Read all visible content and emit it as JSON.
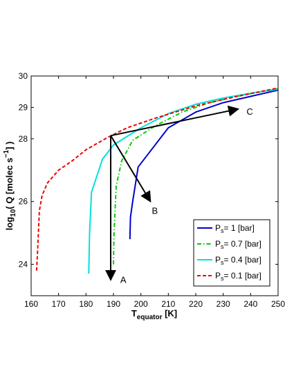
{
  "chart_data": {
    "type": "line",
    "xlabel_main": "T",
    "xlabel_sub": "equator",
    "xlabel_unit": " [K]",
    "ylabel_main": "log",
    "ylabel_sub": "10",
    "ylabel_mid": "( Q [molec s",
    "ylabel_sup": "−1",
    "ylabel_end": "] )",
    "xlim": [
      160,
      250
    ],
    "ylim": [
      23,
      30
    ],
    "xticks": [
      160,
      170,
      180,
      190,
      200,
      210,
      220,
      230,
      240,
      250
    ],
    "yticks": [
      24,
      26,
      28,
      29,
      30
    ],
    "grid": false,
    "legend_position": "bottom-right",
    "series": [
      {
        "name_main": "P",
        "name_sub": "s",
        "name_rest": "= 1 [bar]",
        "color": "#0000cc",
        "dash": "solid",
        "x": [
          196,
          196.2,
          197,
          199,
          210,
          220,
          230,
          240,
          250
        ],
        "y": [
          24.8,
          25.5,
          26.0,
          27.1,
          28.35,
          28.85,
          29.15,
          29.35,
          29.55
        ]
      },
      {
        "name_main": "P",
        "name_sub": "s",
        "name_rest": "= 0.7 [bar]",
        "color": "#00cc00",
        "dash": "dashdot",
        "x": [
          190,
          190.2,
          191,
          193,
          197,
          205,
          215,
          225,
          235,
          250
        ],
        "y": [
          24.0,
          25.0,
          26.5,
          27.3,
          27.95,
          28.4,
          28.85,
          29.15,
          29.35,
          29.6
        ]
      },
      {
        "name_main": "P",
        "name_sub": "s",
        "name_rest": "= 0.4 [bar]",
        "color": "#00e0e0",
        "dash": "solid",
        "x": [
          181,
          181.3,
          182,
          186,
          190,
          200,
          210,
          220,
          230,
          240,
          250
        ],
        "y": [
          23.7,
          25.0,
          26.3,
          27.35,
          27.8,
          28.35,
          28.8,
          29.1,
          29.3,
          29.45,
          29.58
        ]
      },
      {
        "name_main": "P",
        "name_sub": "s",
        "name_rest": "= 0.1 [bar]",
        "color": "#ee0000",
        "dash": "dashed",
        "x": [
          162,
          162.4,
          163,
          164,
          166,
          170,
          175,
          180,
          188,
          195,
          205,
          220,
          235,
          250
        ],
        "y": [
          23.8,
          24.5,
          25.7,
          26.2,
          26.6,
          27.0,
          27.3,
          27.65,
          28.05,
          28.35,
          28.65,
          29.05,
          29.35,
          29.62
        ]
      }
    ],
    "annotations": {
      "origin": [
        189,
        28.1
      ],
      "arrows": [
        {
          "label": "A",
          "to": [
            189,
            23.5
          ],
          "label_at": [
            192,
            23.5
          ]
        },
        {
          "label": "B",
          "to": [
            203.5,
            26.0
          ],
          "label_at": [
            203.5,
            25.7
          ]
        },
        {
          "label": "C",
          "to": [
            235.5,
            28.95
          ],
          "label_at": [
            238,
            28.85
          ]
        }
      ]
    }
  }
}
